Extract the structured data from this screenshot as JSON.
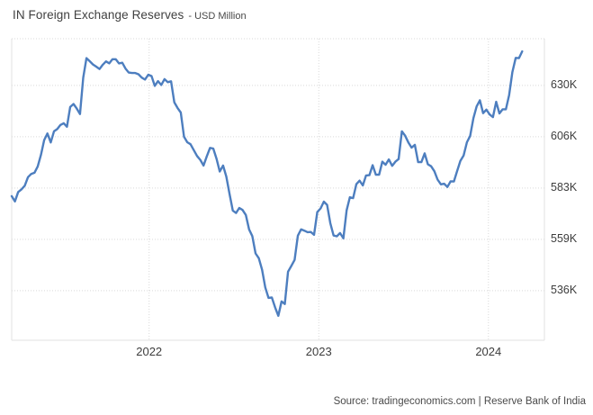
{
  "title": {
    "main": "IN Foreign Exchange Reserves",
    "subtitle": "- USD Million"
  },
  "source": "Source: tradingeconomics.com | Reserve Bank of India",
  "colors": {
    "line": "#4d7ebf",
    "grid_dotted": "#d9d9d9",
    "plot_border": "#e2e2e2",
    "axis_text": "#3d3d3d",
    "title_text": "#404040",
    "source_text": "#4a4a4a",
    "background": "#ffffff"
  },
  "chart_data": {
    "type": "line",
    "title": "IN Foreign Exchange Reserves",
    "unit": "USD Million",
    "xlabel": "",
    "ylabel": "",
    "legend": "none",
    "grid": "dotted",
    "axis_side": "right",
    "xlim": [
      2021.19,
      2024.33
    ],
    "ylim": [
      513.3,
      651.4
    ],
    "x_start": 2021.19,
    "x_step": 0.019165,
    "x_ticks": [
      {
        "label": "2022",
        "value": 2022
      },
      {
        "label": "2023",
        "value": 2023
      },
      {
        "label": "2024",
        "value": 2024
      }
    ],
    "y_ticks": [
      {
        "label": "630K",
        "value": 630
      },
      {
        "label": "606K",
        "value": 606.5
      },
      {
        "label": "583K",
        "value": 583
      },
      {
        "label": "559K",
        "value": 559.5
      },
      {
        "label": "536K",
        "value": 536
      }
    ],
    "series_name": "IN Foreign Exchange Reserves (USD Million, weekly, thousands)",
    "values": [
      579.3,
      576.9,
      581.2,
      582.4,
      584.1,
      588.0,
      589.5,
      590.0,
      592.9,
      598.2,
      605.0,
      608.0,
      603.9,
      609.0,
      610.0,
      611.9,
      612.7,
      611.1,
      620.1,
      621.5,
      619.4,
      616.9,
      633.6,
      642.5,
      641.1,
      639.6,
      638.6,
      637.5,
      639.5,
      641.0,
      640.1,
      642.0,
      642.0,
      640.1,
      640.4,
      637.7,
      635.9,
      635.7,
      635.7,
      635.1,
      633.6,
      632.7,
      634.9,
      634.3,
      629.8,
      632.0,
      630.2,
      632.9,
      631.5,
      631.9,
      622.3,
      619.7,
      617.6,
      606.5,
      604.0,
      603.1,
      600.4,
      597.7,
      595.9,
      593.3,
      597.5,
      601.4,
      601.1,
      596.5,
      590.6,
      593.3,
      588.3,
      580.3,
      572.7,
      571.6,
      573.9,
      573.0,
      570.7,
      564.1,
      561.0,
      553.1,
      550.9,
      545.7,
      537.5,
      532.7,
      532.9,
      528.4,
      524.5,
      531.1,
      529.9,
      544.7,
      547.3,
      550.1,
      561.2,
      564.1,
      563.5,
      562.8,
      562.9,
      561.6,
      572.0,
      573.7,
      576.8,
      575.3,
      566.9,
      561.3,
      560.9,
      562.4,
      560.0,
      572.8,
      578.8,
      578.4,
      584.8,
      586.4,
      584.2,
      588.8,
      588.9,
      593.5,
      589.1,
      589.1,
      595.1,
      593.7,
      596.1,
      593.2,
      595.1,
      596.3,
      609.0,
      607.0,
      603.9,
      601.5,
      602.8,
      594.9,
      594.9,
      598.9,
      593.9,
      593.0,
      590.7,
      586.9,
      584.7,
      585.0,
      583.5,
      586.1,
      586.0,
      590.8,
      595.4,
      597.9,
      604.0,
      606.9,
      615.0,
      620.4,
      623.2,
      617.3,
      618.9,
      616.7,
      615.5,
      622.5,
      617.2,
      619.1,
      619.1,
      625.6,
      636.1,
      642.6,
      642.5,
      645.6
    ]
  }
}
